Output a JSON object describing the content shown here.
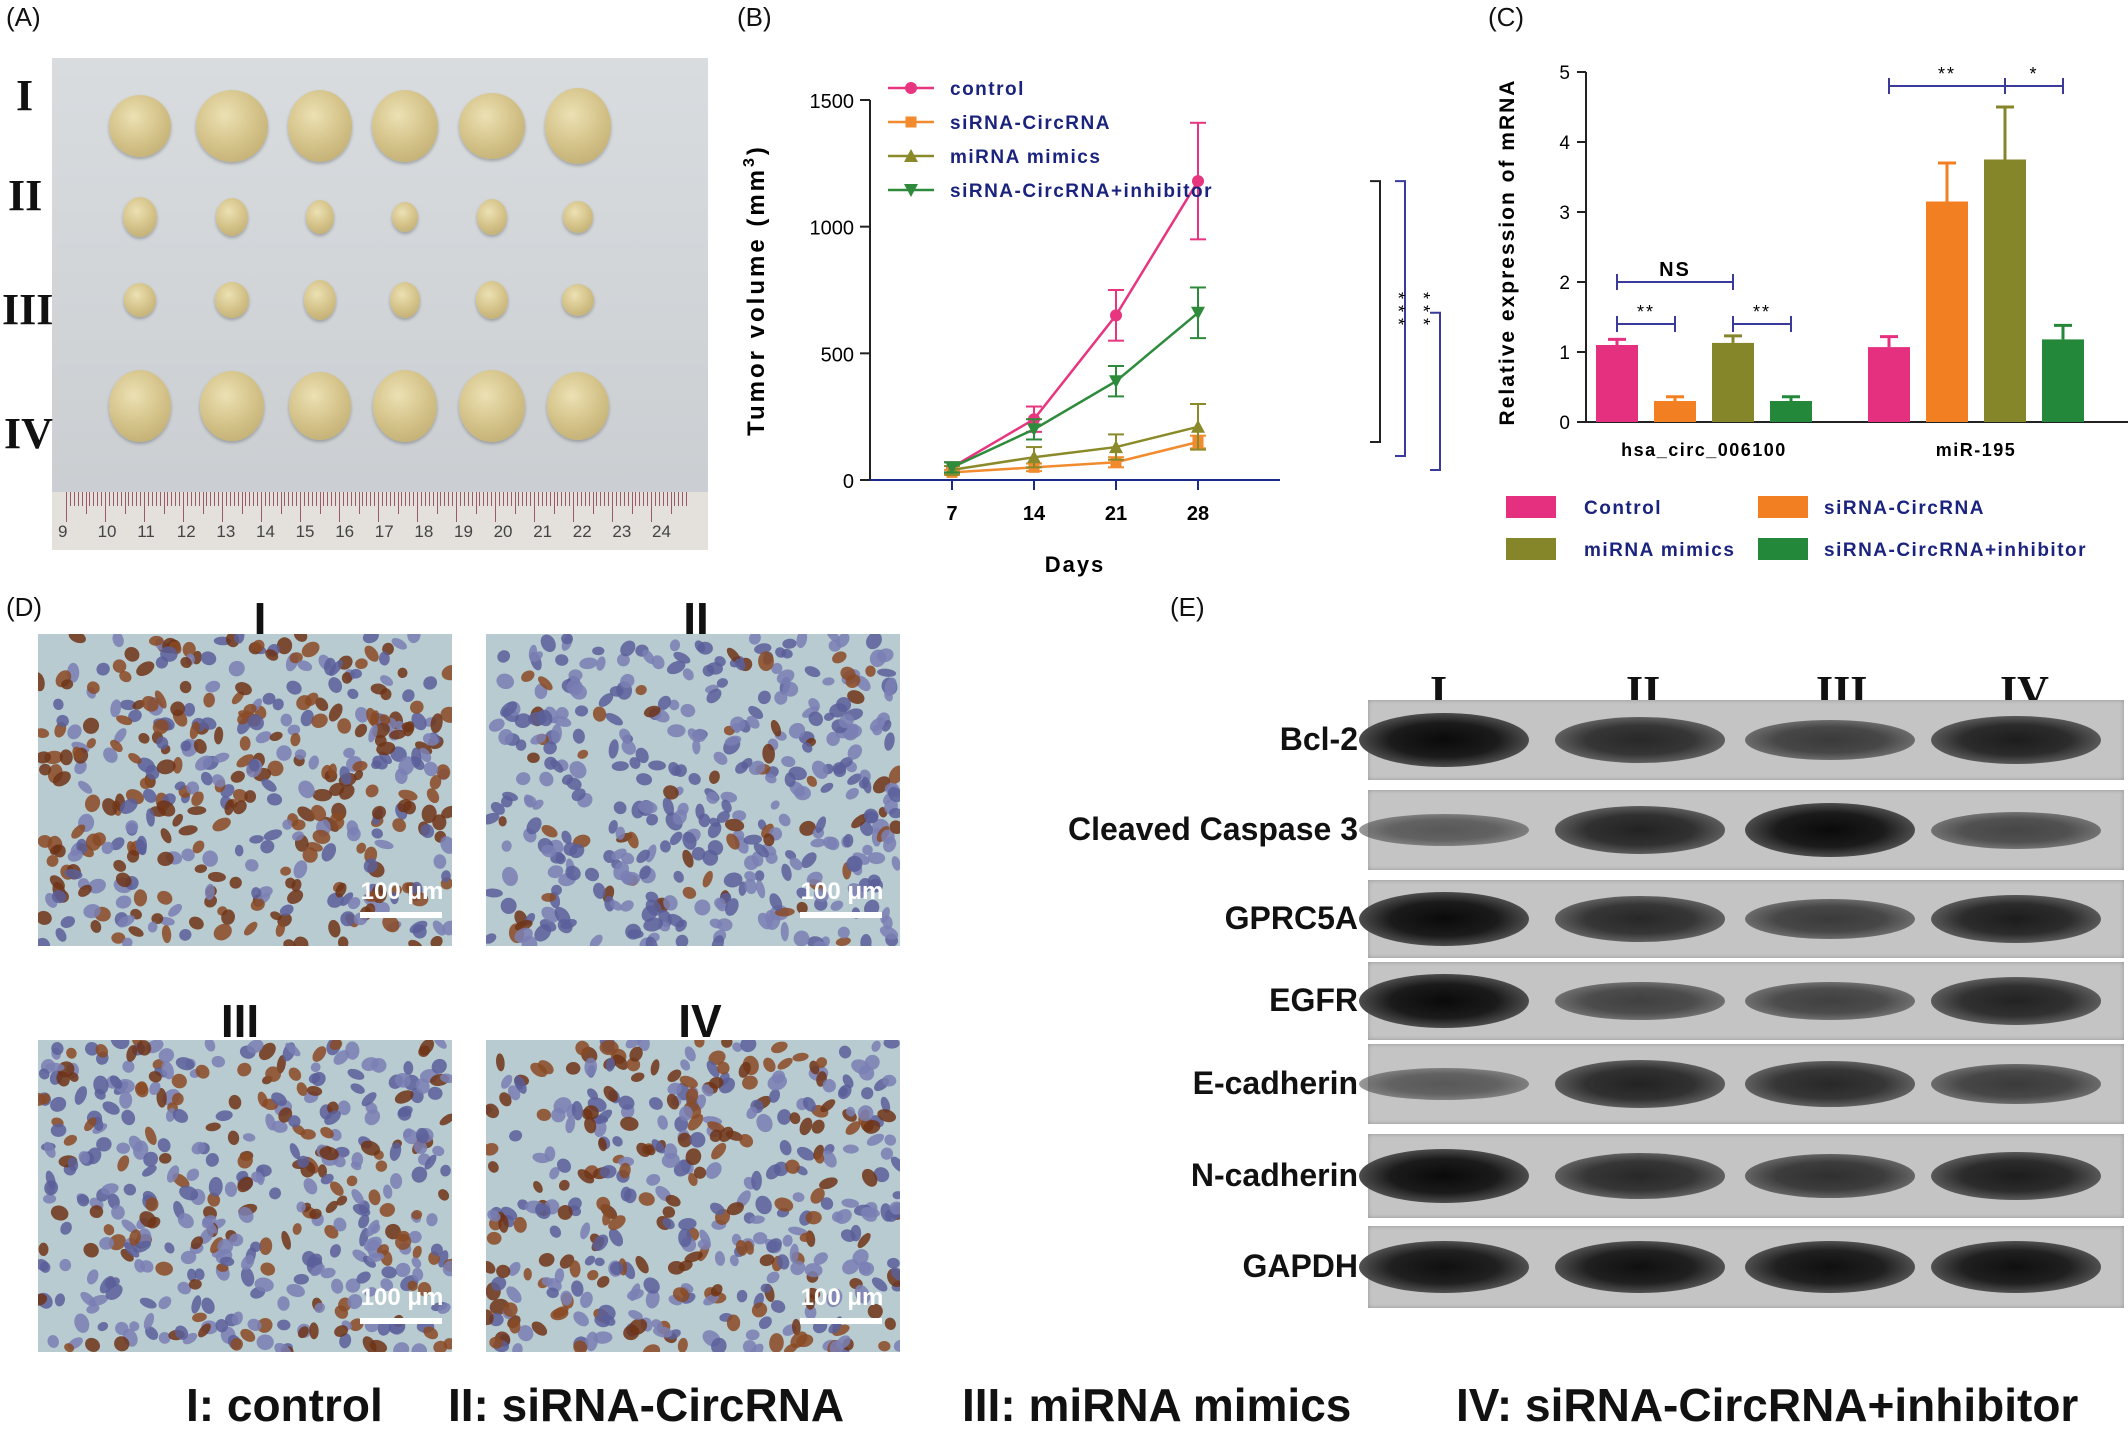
{
  "panels": {
    "a": "(A)",
    "b": "(B)",
    "c": "(C)",
    "d": "(D)",
    "e": "(E)"
  },
  "panel_a": {
    "rows": [
      "I",
      "II",
      "III",
      "IV"
    ],
    "ruler_numbers": [
      "9",
      "10",
      "11",
      "12",
      "13",
      "14",
      "15",
      "16",
      "17",
      "18",
      "19",
      "20",
      "21",
      "22",
      "23",
      "24"
    ]
  },
  "chart_data": [
    {
      "type": "line",
      "xlabel": "Days",
      "ylabel": "Tumor volume (mm",
      "ylabel_sup": "3",
      "ylabel_end": ")",
      "x": [
        7,
        14,
        21,
        28
      ],
      "xticks": [
        "7",
        "14",
        "21",
        "28"
      ],
      "yticks": [
        "0",
        "500",
        "1000",
        "1500"
      ],
      "ylim": [
        0,
        1500
      ],
      "xlim": [
        0,
        35
      ],
      "series": [
        {
          "name": "control",
          "color": "#e8357f",
          "marker": "circle",
          "values": [
            50,
            240,
            650,
            1180
          ],
          "err": [
            20,
            50,
            100,
            230
          ]
        },
        {
          "name": "siRNA-CircRNA",
          "color": "#f28a2e",
          "marker": "square",
          "values": [
            30,
            50,
            70,
            150
          ],
          "err": [
            10,
            15,
            20,
            25
          ]
        },
        {
          "name": "miRNA mimics",
          "color": "#8a8a2a",
          "marker": "triangle-up",
          "values": [
            40,
            90,
            130,
            210
          ],
          "err": [
            15,
            40,
            50,
            90
          ]
        },
        {
          "name": "siRNA-CircRNA+inhibitor",
          "color": "#2e8b3c",
          "marker": "triangle-down",
          "values": [
            50,
            200,
            390,
            660
          ],
          "err": [
            20,
            40,
            60,
            100
          ]
        }
      ],
      "significance": [
        "***",
        "***",
        "**"
      ]
    },
    {
      "type": "bar",
      "ylabel": "Relative expression of mRNA",
      "categories": [
        "hsa_circ_006100",
        "miR-195"
      ],
      "yticks": [
        "0",
        "1",
        "2",
        "3",
        "4",
        "5"
      ],
      "ylim": [
        0,
        5
      ],
      "series": [
        {
          "name": "Control",
          "color": "#e5307f",
          "values": [
            1.1,
            1.07
          ],
          "err": [
            0.08,
            0.15
          ]
        },
        {
          "name": "siRNA-CircRNA",
          "color": "#f37f23",
          "values": [
            0.3,
            3.15
          ],
          "err": [
            0.06,
            0.55
          ]
        },
        {
          "name": "miRNA mimics",
          "color": "#85852a",
          "values": [
            1.13,
            3.75
          ],
          "err": [
            0.1,
            0.75
          ]
        },
        {
          "name": "siRNA-CircRNA+inhibitor",
          "color": "#24883a",
          "values": [
            0.3,
            1.18
          ],
          "err": [
            0.06,
            0.2
          ]
        }
      ],
      "significance": [
        "**",
        "**",
        "NS",
        "**",
        "*"
      ]
    }
  ],
  "panel_d": {
    "titles": [
      "I",
      "II",
      "III",
      "IV"
    ],
    "scale_label": "100 μm"
  },
  "panel_e": {
    "lanes": [
      "I",
      "II",
      "III",
      "IV"
    ],
    "proteins": [
      {
        "label": "Bcl-2",
        "intensity": [
          1.0,
          0.75,
          0.6,
          0.85
        ]
      },
      {
        "label": "Cleaved Caspase 3",
        "intensity": [
          0.35,
          0.8,
          1.0,
          0.5
        ]
      },
      {
        "label": "GPRC5A",
        "intensity": [
          1.0,
          0.75,
          0.6,
          0.85
        ]
      },
      {
        "label": "EGFR",
        "intensity": [
          1.0,
          0.55,
          0.55,
          0.8
        ]
      },
      {
        "label": "E-cadherin",
        "intensity": [
          0.35,
          0.8,
          0.75,
          0.6
        ]
      },
      {
        "label": "N-cadherin",
        "intensity": [
          1.0,
          0.75,
          0.7,
          0.85
        ]
      },
      {
        "label": "GAPDH",
        "intensity": [
          0.95,
          0.95,
          0.95,
          0.95
        ]
      }
    ]
  },
  "legend_bottom": [
    "I: control",
    "II: siRNA-CircRNA",
    "III: miRNA mimics",
    "IV: siRNA-CircRNA+inhibitor"
  ]
}
